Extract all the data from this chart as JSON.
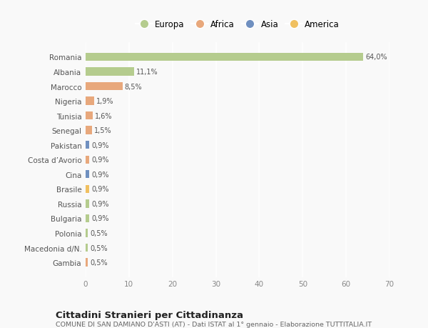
{
  "countries": [
    "Romania",
    "Albania",
    "Marocco",
    "Nigeria",
    "Tunisia",
    "Senegal",
    "Pakistan",
    "Costa d’Avorio",
    "Cina",
    "Brasile",
    "Russia",
    "Bulgaria",
    "Polonia",
    "Macedonia d/N.",
    "Gambia"
  ],
  "values": [
    64.0,
    11.1,
    8.5,
    1.9,
    1.6,
    1.5,
    0.9,
    0.9,
    0.9,
    0.9,
    0.9,
    0.9,
    0.5,
    0.5,
    0.5
  ],
  "labels": [
    "64,0%",
    "11,1%",
    "8,5%",
    "1,9%",
    "1,6%",
    "1,5%",
    "0,9%",
    "0,9%",
    "0,9%",
    "0,9%",
    "0,9%",
    "0,9%",
    "0,5%",
    "0,5%",
    "0,5%"
  ],
  "colors": [
    "#b5cc8e",
    "#b5cc8e",
    "#e8a87c",
    "#e8a87c",
    "#e8a87c",
    "#e8a87c",
    "#7090c0",
    "#e8a87c",
    "#7090c0",
    "#f0c060",
    "#b5cc8e",
    "#b5cc8e",
    "#b5cc8e",
    "#b5cc8e",
    "#e8a87c"
  ],
  "legend_labels": [
    "Europa",
    "Africa",
    "Asia",
    "America"
  ],
  "legend_colors": [
    "#b5cc8e",
    "#e8a87c",
    "#7090c0",
    "#f0c060"
  ],
  "title": "Cittadini Stranieri per Cittadinanza",
  "subtitle": "COMUNE DI SAN DAMIANO D'ASTI (AT) - Dati ISTAT al 1° gennaio - Elaborazione TUTTITALIA.IT",
  "xlim": [
    0,
    70
  ],
  "xticks": [
    0,
    10,
    20,
    30,
    40,
    50,
    60,
    70
  ],
  "background_color": "#f9f9f9",
  "grid_color": "#ffffff",
  "bar_height": 0.55
}
